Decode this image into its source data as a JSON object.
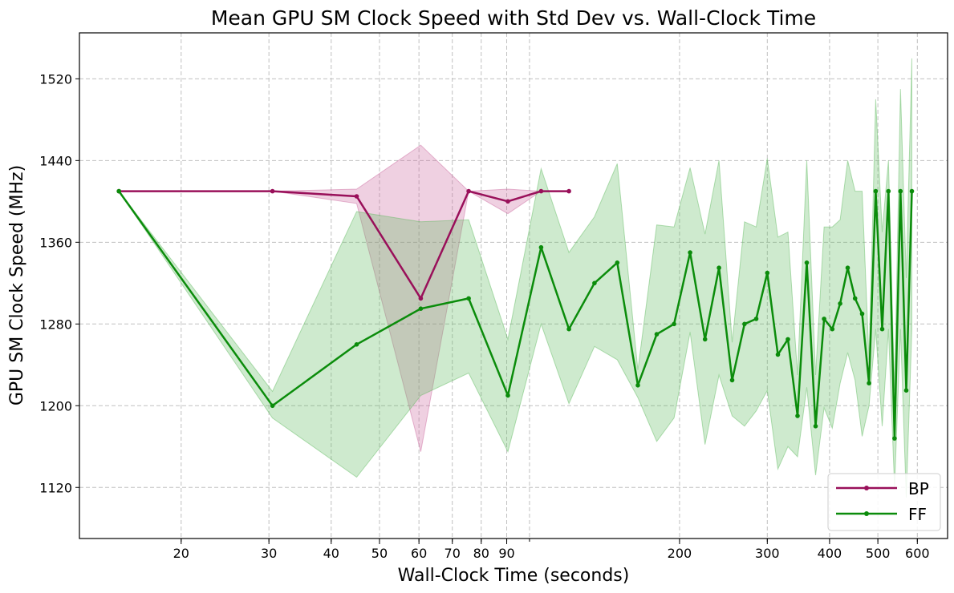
{
  "chart_data": {
    "type": "line",
    "title": "Mean GPU SM Clock Speed with Std Dev vs. Wall-Clock Time",
    "xlabel": "Wall-Clock Time (seconds)",
    "ylabel": "GPU SM Clock Speed (MHz)",
    "xscale": "log",
    "xlim": [
      12.5,
      690
    ],
    "ylim": [
      1070,
      1565
    ],
    "xticks": [
      20,
      30,
      40,
      50,
      60,
      70,
      80,
      90,
      200,
      300,
      400,
      500,
      600
    ],
    "xtick_labels": [
      "20",
      "30",
      "40",
      "50",
      "60",
      "70",
      "80",
      "90",
      "200",
      "300",
      "400",
      "500",
      "600"
    ],
    "yticks": [
      1120,
      1200,
      1280,
      1360,
      1440,
      1520
    ],
    "ytick_labels": [
      "1120",
      "1200",
      "1280",
      "1360",
      "1440",
      "1520"
    ],
    "grid": true,
    "legend_position": "bottom-right",
    "series": [
      {
        "name": "BP",
        "color": "#99105a",
        "fill_color": "#c9649b",
        "x": [
          15,
          30.5,
          45,
          60.5,
          75.5,
          90.5,
          105.5,
          120
        ],
        "y": [
          1410,
          1410,
          1405,
          1305,
          1410,
          1400,
          1410,
          1410
        ],
        "lower": [
          1410,
          1410,
          1398,
          1155,
          1410,
          1388,
          1410,
          1410
        ],
        "upper": [
          1410,
          1410,
          1412,
          1455,
          1410,
          1412,
          1410,
          1410
        ]
      },
      {
        "name": "FF",
        "color": "#0b8c0b",
        "fill_color": "#5cb85c",
        "x": [
          15,
          30.5,
          45,
          60.5,
          75.5,
          90.5,
          105.5,
          120,
          135,
          150,
          165,
          180,
          195,
          210,
          225,
          240,
          255,
          270,
          285,
          300,
          315,
          330,
          345,
          360,
          375,
          390,
          405,
          420,
          435,
          450,
          465,
          480,
          495,
          510,
          525,
          540,
          555,
          570,
          585
        ],
        "y": [
          1410,
          1200,
          1260,
          1295,
          1305,
          1210,
          1355,
          1275,
          1320,
          1340,
          1220,
          1270,
          1280,
          1350,
          1265,
          1335,
          1225,
          1280,
          1285,
          1330,
          1250,
          1265,
          1190,
          1340,
          1180,
          1285,
          1275,
          1300,
          1335,
          1305,
          1290,
          1222,
          1410,
          1275,
          1410,
          1168,
          1410,
          1215,
          1410
        ],
        "lower": [
          1410,
          1188,
          1130,
          1210,
          1232,
          1155,
          1280,
          1202,
          1258,
          1245,
          1208,
          1165,
          1188,
          1272,
          1162,
          1230,
          1190,
          1180,
          1195,
          1215,
          1138,
          1160,
          1150,
          1218,
          1132,
          1198,
          1178,
          1222,
          1252,
          1225,
          1170,
          1200,
          1275,
          1180,
          1275,
          1120,
          1275,
          1110,
          1275
        ],
        "upper": [
          1410,
          1214,
          1390,
          1380,
          1382,
          1265,
          1432,
          1350,
          1385,
          1437,
          1235,
          1377,
          1375,
          1433,
          1368,
          1440,
          1262,
          1380,
          1375,
          1442,
          1365,
          1370,
          1230,
          1440,
          1230,
          1375,
          1375,
          1382,
          1440,
          1410,
          1410,
          1245,
          1500,
          1370,
          1440,
          1215,
          1510,
          1325,
          1540
        ]
      }
    ]
  }
}
